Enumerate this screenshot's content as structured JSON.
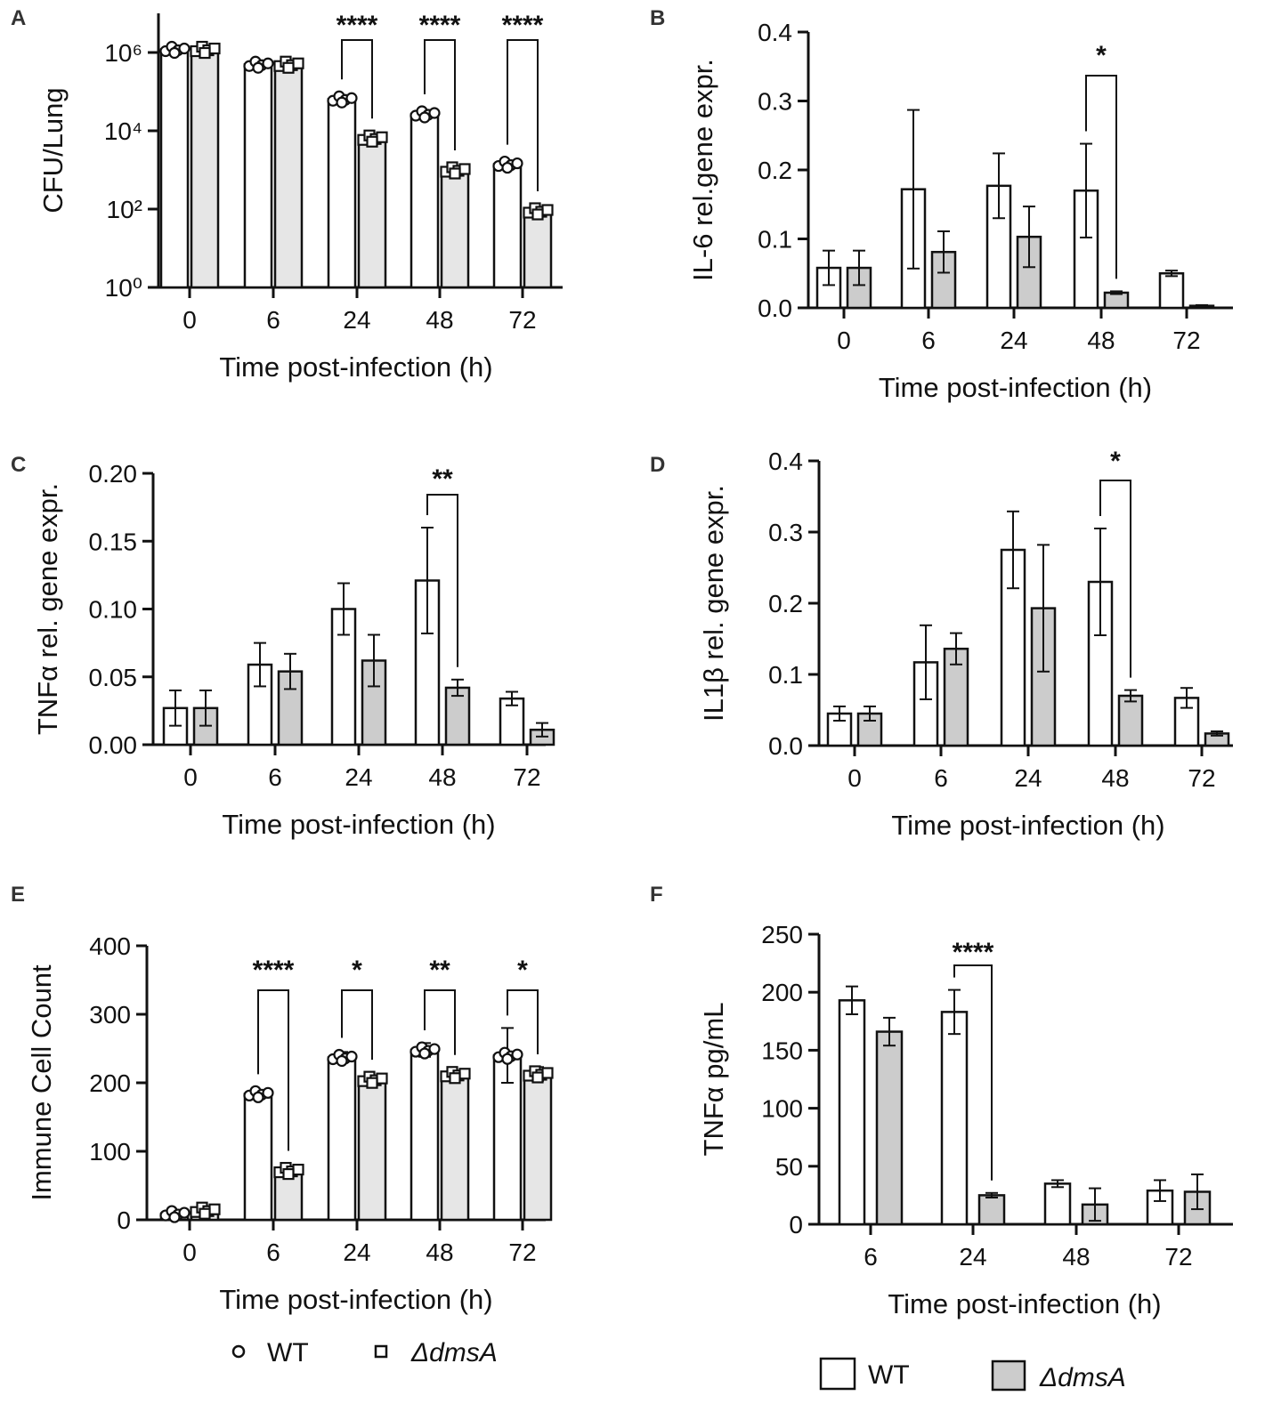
{
  "legends": {
    "points": [
      {
        "label": "WT",
        "marker": "circle"
      },
      {
        "label": "ΔdmsA",
        "marker": "square"
      }
    ],
    "bars": [
      {
        "label": "WT",
        "fill": "#ffffff"
      },
      {
        "label": "ΔdmsA",
        "fill": "#cccccc"
      }
    ]
  },
  "chart_data": [
    {
      "panel": "A",
      "type": "bar",
      "ylabel": "CFU/Lung",
      "xlabel": "Time post-infection (h)",
      "yscale": "log",
      "ylim": [
        1,
        10000000
      ],
      "yticks": [
        1,
        100,
        10000,
        1000000
      ],
      "ytick_labels": [
        "10⁰",
        "10²",
        "10⁴",
        "10⁶"
      ],
      "categories": [
        "0",
        "6",
        "24",
        "48",
        "72"
      ],
      "series": [
        {
          "name": "WT",
          "values": [
            1200000,
            500000,
            65000,
            27000,
            1400
          ],
          "marker": "circle",
          "fill": "#ffffff"
        },
        {
          "name": "ΔdmsA",
          "values": [
            1200000,
            500000,
            6500,
            1000,
            90
          ],
          "marker": "square",
          "fill": "#e6e6e6"
        }
      ],
      "significance": [
        {
          "category": 2,
          "label": "****"
        },
        {
          "category": 3,
          "label": "****"
        },
        {
          "category": 4,
          "label": "****"
        }
      ]
    },
    {
      "panel": "B",
      "type": "bar",
      "ylabel": "IL-6 rel.gene expr.",
      "xlabel": "Time post-infection (h)",
      "yscale": "linear",
      "ylim": [
        0,
        0.4
      ],
      "yticks": [
        0,
        0.1,
        0.2,
        0.3,
        0.4
      ],
      "ytick_labels": [
        "0.0",
        "0.1",
        "0.2",
        "0.3",
        "0.4"
      ],
      "categories": [
        "0",
        "6",
        "24",
        "48",
        "72"
      ],
      "series": [
        {
          "name": "WT",
          "values": [
            0.058,
            0.172,
            0.177,
            0.17,
            0.05
          ],
          "errors": [
            0.025,
            0.115,
            0.047,
            0.068,
            0.004
          ],
          "fill": "#ffffff"
        },
        {
          "name": "ΔdmsA",
          "values": [
            0.058,
            0.081,
            0.103,
            0.022,
            0.003
          ],
          "errors": [
            0.025,
            0.03,
            0.044,
            0.002,
            0.001
          ],
          "fill": "#cccccc"
        }
      ],
      "significance": [
        {
          "category": 3,
          "label": "*"
        }
      ]
    },
    {
      "panel": "C",
      "type": "bar",
      "ylabel": "TNFα rel. gene expr.",
      "xlabel": "Time post-infection (h)",
      "yscale": "linear",
      "ylim": [
        0,
        0.2
      ],
      "yticks": [
        0,
        0.05,
        0.1,
        0.15,
        0.2
      ],
      "ytick_labels": [
        "0.00",
        "0.05",
        "0.10",
        "0.15",
        "0.20"
      ],
      "categories": [
        "0",
        "6",
        "24",
        "48",
        "72"
      ],
      "series": [
        {
          "name": "WT",
          "values": [
            0.027,
            0.059,
            0.1,
            0.121,
            0.034
          ],
          "errors": [
            0.013,
            0.016,
            0.019,
            0.039,
            0.005
          ],
          "fill": "#ffffff"
        },
        {
          "name": "ΔdmsA",
          "values": [
            0.027,
            0.054,
            0.062,
            0.042,
            0.011
          ],
          "errors": [
            0.013,
            0.013,
            0.019,
            0.006,
            0.005
          ],
          "fill": "#cccccc"
        }
      ],
      "significance": [
        {
          "category": 3,
          "label": "**"
        }
      ]
    },
    {
      "panel": "D",
      "type": "bar",
      "ylabel": "IL1β  rel. gene expr.",
      "xlabel": "Time post-infection (h)",
      "yscale": "linear",
      "ylim": [
        0,
        0.4
      ],
      "yticks": [
        0,
        0.1,
        0.2,
        0.3,
        0.4
      ],
      "ytick_labels": [
        "0.0",
        "0.1",
        "0.2",
        "0.3",
        "0.4"
      ],
      "categories": [
        "0",
        "6",
        "24",
        "48",
        "72"
      ],
      "series": [
        {
          "name": "WT",
          "values": [
            0.045,
            0.117,
            0.275,
            0.23,
            0.067
          ],
          "errors": [
            0.01,
            0.052,
            0.054,
            0.075,
            0.014
          ],
          "fill": "#ffffff"
        },
        {
          "name": "ΔdmsA",
          "values": [
            0.045,
            0.136,
            0.193,
            0.07,
            0.017
          ],
          "errors": [
            0.01,
            0.022,
            0.089,
            0.008,
            0.003
          ],
          "fill": "#cccccc"
        }
      ],
      "significance": [
        {
          "category": 3,
          "label": "*"
        }
      ]
    },
    {
      "panel": "E",
      "type": "bar",
      "ylabel": "Immune Cell Count",
      "xlabel": "Time post-infection (h)",
      "yscale": "linear",
      "ylim": [
        0,
        400
      ],
      "yticks": [
        0,
        100,
        200,
        300,
        400
      ],
      "ytick_labels": [
        "0",
        "100",
        "200",
        "300",
        "400"
      ],
      "categories": [
        "0",
        "6",
        "24",
        "48",
        "72"
      ],
      "series": [
        {
          "name": "WT",
          "values": [
            9,
            184,
            237,
            248,
            240
          ],
          "errors": [
            2,
            3,
            8,
            10,
            40
          ],
          "marker": "circle",
          "fill": "#ffffff"
        },
        {
          "name": "ΔdmsA",
          "values": [
            14,
            72,
            205,
            212,
            213
          ],
          "errors": [
            2,
            4,
            6,
            5,
            10
          ],
          "marker": "square",
          "fill": "#e6e6e6"
        }
      ],
      "significance": [
        {
          "category": 1,
          "label": "****"
        },
        {
          "category": 2,
          "label": "*"
        },
        {
          "category": 3,
          "label": "**"
        },
        {
          "category": 4,
          "label": "*"
        }
      ]
    },
    {
      "panel": "F",
      "type": "bar",
      "ylabel": "TNFα pg/mL",
      "xlabel": "Time post-infection (h)",
      "yscale": "linear",
      "ylim": [
        0,
        250
      ],
      "yticks": [
        0,
        50,
        100,
        150,
        200,
        250
      ],
      "ytick_labels": [
        "0",
        "50",
        "100",
        "150",
        "200",
        "250"
      ],
      "categories": [
        "6",
        "24",
        "48",
        "72"
      ],
      "series": [
        {
          "name": "WT",
          "values": [
            193,
            183,
            35,
            29
          ],
          "errors": [
            12,
            19,
            3,
            9
          ],
          "fill": "#ffffff"
        },
        {
          "name": "ΔdmsA",
          "values": [
            166,
            25,
            17,
            28
          ],
          "errors": [
            12,
            2,
            14,
            15
          ],
          "fill": "#cccccc"
        }
      ],
      "significance": [
        {
          "category": 1,
          "label": "****"
        }
      ]
    }
  ]
}
